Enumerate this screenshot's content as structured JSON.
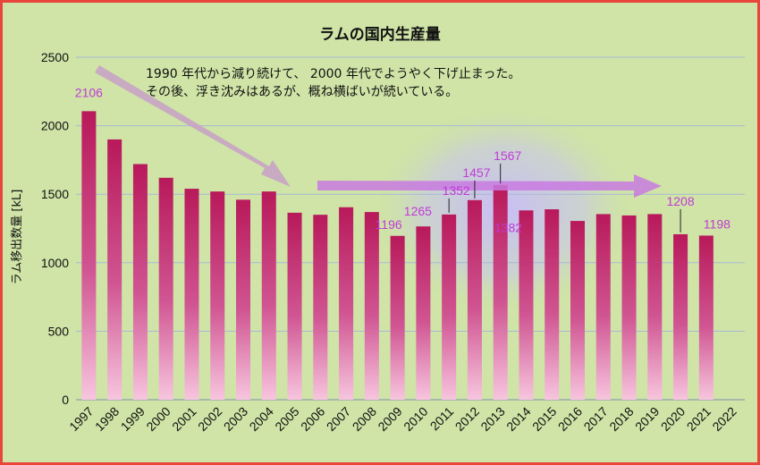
{
  "chart_data": {
    "type": "bar",
    "title": "ラムの国内生産量",
    "xlabel": "",
    "ylabel": "ラム移出数量 [kL]",
    "ylim": [
      0,
      2500
    ],
    "yticks": [
      "0",
      "500",
      "1000",
      "1500",
      "2000",
      "2500"
    ],
    "grid": true,
    "legend": "none",
    "categories": [
      "1997",
      "1998",
      "1999",
      "2000",
      "2001",
      "2002",
      "2003",
      "2004",
      "2005",
      "2006",
      "2007",
      "2008",
      "2009",
      "2010",
      "2011",
      "2012",
      "2013",
      "2014",
      "2015",
      "2016",
      "2017",
      "2018",
      "2019",
      "2020",
      "2021",
      "2022"
    ],
    "values": [
      2106,
      1900,
      1720,
      1620,
      1540,
      1520,
      1460,
      1520,
      1365,
      1350,
      1405,
      1370,
      1196,
      1265,
      1352,
      1457,
      1567,
      1382,
      1390,
      1305,
      1355,
      1345,
      1355,
      1208,
      1198,
      null
    ],
    "data_labels": [
      {
        "category": "1997",
        "text": "2106"
      },
      {
        "category": "2009",
        "text": "1196"
      },
      {
        "category": "2010",
        "text": "1265"
      },
      {
        "category": "2011",
        "text": "1352"
      },
      {
        "category": "2012",
        "text": "1457"
      },
      {
        "category": "2013",
        "text": "1567"
      },
      {
        "category": "2014",
        "text": "1382"
      },
      {
        "category": "2020",
        "text": "1208"
      },
      {
        "category": "2021",
        "text": "1198"
      }
    ],
    "annotations": [
      "1990 年代から減り続けて、 2000 年代でようやく下げ止まった。",
      "その後、浮き沈みはあるが、概ね横ばいが続いている。"
    ],
    "colors": {
      "background": "#cfe4a6",
      "border": "#e8453c",
      "bar_top": "#b8195a",
      "bar_bottom": "#f7c5de",
      "data_label": "#c03ad6",
      "arrow_down": "#c8a0c8",
      "arrow_flat": "#c87ae0",
      "grid": "#a8b8d8"
    }
  }
}
